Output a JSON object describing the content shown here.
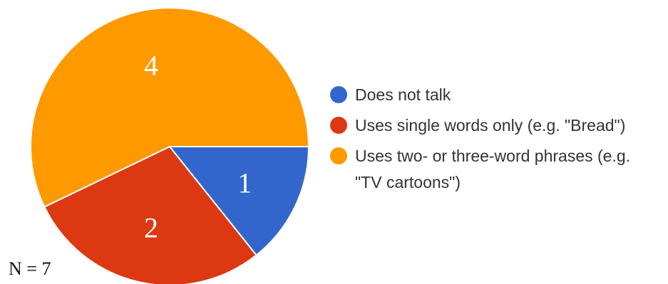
{
  "chart_data": {
    "type": "pie",
    "title": "",
    "slices": [
      {
        "label": "Does not talk",
        "value": 1,
        "color": "#3366cc"
      },
      {
        "label": "Uses single words only (e.g. \"Bread\")",
        "value": 2,
        "color": "#dc3912"
      },
      {
        "label": "Uses two- or three-word phrases (e.g. \"TV cartoons\")",
        "value": 4,
        "color": "#ff9900"
      }
    ],
    "legend_lines": [
      [
        "Does not talk"
      ],
      [
        "Uses single words only (e.g. \"Bread\")"
      ],
      [
        "Uses two- or three-word phrases (e.g.",
        "\"TV cartoons\")"
      ]
    ],
    "legend_position": "right",
    "data_labels": "values",
    "annotation": "N = 7"
  }
}
